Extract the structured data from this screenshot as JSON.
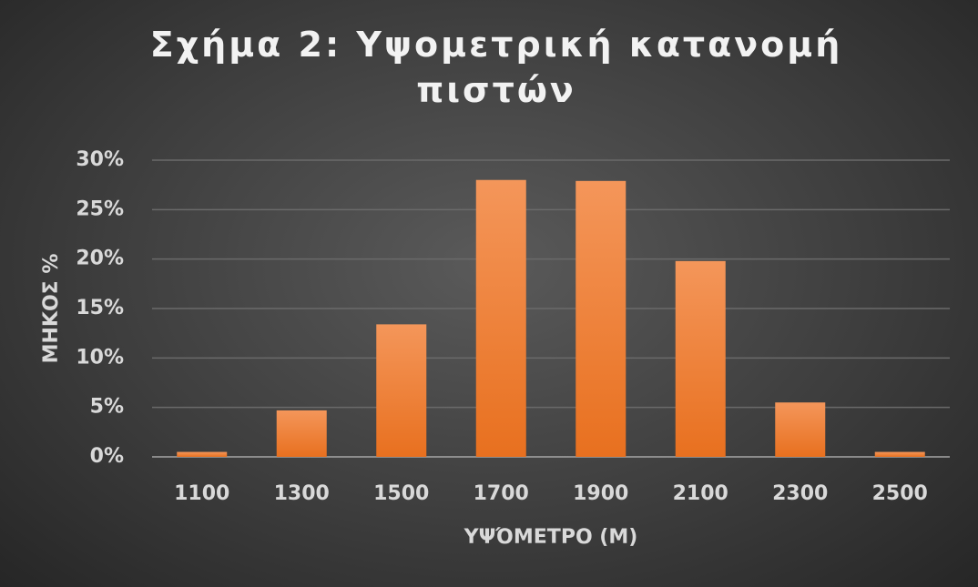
{
  "chart_data": {
    "type": "bar",
    "title": "Σχήμα 2: Υψομετρική κατανομή πιστών",
    "x_label": "ΥΨΌΜΕΤΡΟ (Μ)",
    "y_label": "ΜΗΚΟΣ %",
    "categories": [
      "1100",
      "1300",
      "1500",
      "1700",
      "1900",
      "2100",
      "2300",
      "2500"
    ],
    "values": [
      0.5,
      4.7,
      13.4,
      28,
      27.9,
      19.8,
      5.5,
      0.5
    ],
    "color": "#ed7d31",
    "ylim": [
      0,
      30
    ],
    "yticks": [
      {
        "value": 0,
        "label": "0%"
      },
      {
        "value": 5,
        "label": "5%"
      },
      {
        "value": 10,
        "label": "10%"
      },
      {
        "value": 15,
        "label": "15%"
      },
      {
        "value": 20,
        "label": "20%"
      },
      {
        "value": 25,
        "label": "25%"
      },
      {
        "value": 30,
        "label": "30%"
      }
    ],
    "grid": true
  }
}
